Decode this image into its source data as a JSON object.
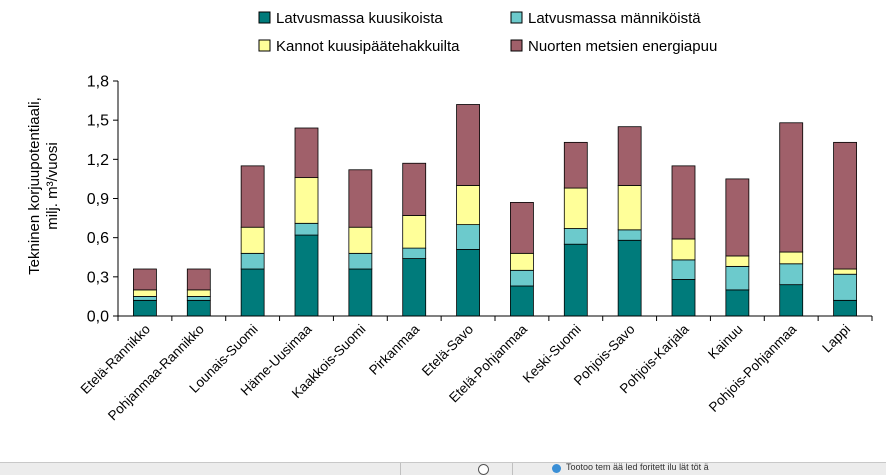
{
  "chart_data": {
    "type": "bar",
    "stacked": true,
    "ylabel_line1": "Tekninen korjuupotentiaali,",
    "ylabel_line2": "milj. m³/vuosi",
    "ylim": [
      0,
      1.8
    ],
    "yticks": [
      "0,0",
      "0,3",
      "0,6",
      "0,9",
      "1,2",
      "1,5",
      "1,8"
    ],
    "grid": false,
    "legend_position": "top",
    "categories": [
      "Etelä-Rannikko",
      "Pohjanmaa-Rannikko",
      "Lounais-Suomi",
      "Häme-Uusimaa",
      "Kaakkois-Suomi",
      "Pirkanmaa",
      "Etelä-Savo",
      "Etelä-Pohjanmaa",
      "Keski-Suomi",
      "Pohjois-Savo",
      "Pohjois-Karjala",
      "Kainuu",
      "Pohjois-Pohjanmaa",
      "Lappi"
    ],
    "series": [
      {
        "name": "Latvusmassa kuusikoista",
        "color": "#007b7b",
        "values": [
          0.12,
          0.12,
          0.36,
          0.62,
          0.36,
          0.44,
          0.51,
          0.23,
          0.55,
          0.58,
          0.28,
          0.2,
          0.24,
          0.12
        ]
      },
      {
        "name": "Latvusmassa männiköistä",
        "color": "#6ccacc",
        "values": [
          0.03,
          0.03,
          0.12,
          0.09,
          0.12,
          0.08,
          0.19,
          0.12,
          0.12,
          0.08,
          0.15,
          0.18,
          0.16,
          0.2
        ]
      },
      {
        "name": "Kannot kuusipäätehakkuilta",
        "color": "#ffff99",
        "values": [
          0.05,
          0.05,
          0.2,
          0.35,
          0.2,
          0.25,
          0.3,
          0.13,
          0.31,
          0.34,
          0.16,
          0.08,
          0.09,
          0.04
        ]
      },
      {
        "name": "Nuorten metsien energiapuu",
        "color": "#a0606a",
        "values": [
          0.16,
          0.16,
          0.47,
          0.38,
          0.44,
          0.4,
          0.62,
          0.39,
          0.35,
          0.45,
          0.56,
          0.59,
          0.99,
          0.97
        ]
      }
    ]
  },
  "statusbar": {
    "text": "Tootoo tem ää led foritett ilu lät töt ä"
  }
}
